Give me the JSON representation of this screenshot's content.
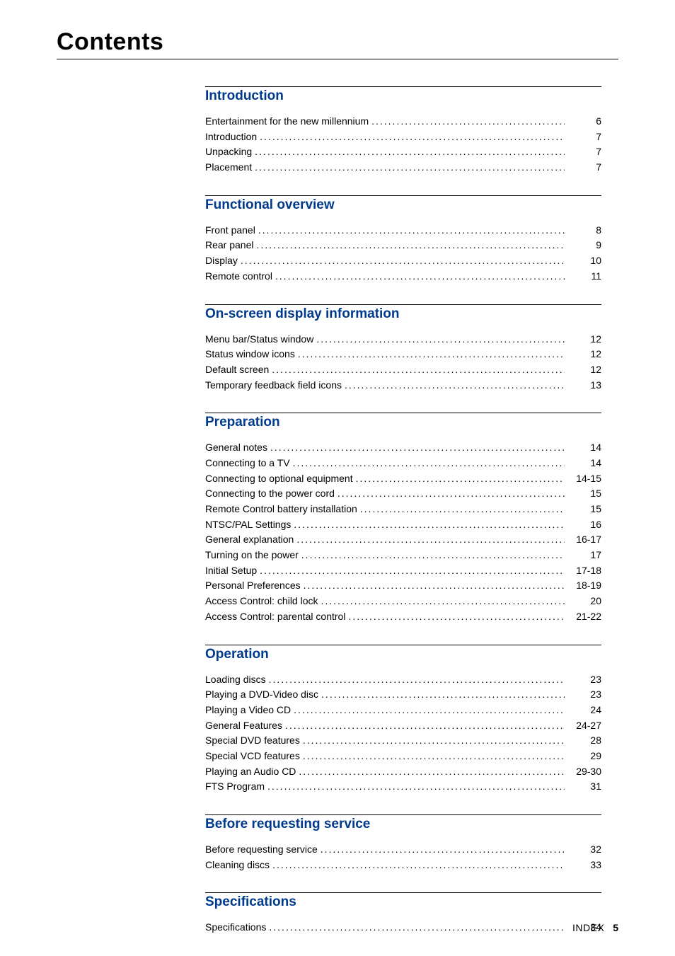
{
  "title": "Contents",
  "heading_color": "#003a8c",
  "text_color": "#000000",
  "background_color": "#ffffff",
  "sections": [
    {
      "heading": "Introduction",
      "items": [
        {
          "label": "Entertainment for the new millennium",
          "page": "6"
        },
        {
          "label": "Introduction",
          "page": "7"
        },
        {
          "label": "Unpacking",
          "page": "7"
        },
        {
          "label": "Placement",
          "page": "7"
        }
      ]
    },
    {
      "heading": "Functional overview",
      "items": [
        {
          "label": "Front panel",
          "page": "8"
        },
        {
          "label": "Rear panel",
          "page": "9"
        },
        {
          "label": "Display",
          "page": "10"
        },
        {
          "label": "Remote control",
          "page": "11"
        }
      ]
    },
    {
      "heading": "On-screen display information",
      "items": [
        {
          "label": "Menu bar/Status window",
          "page": "12"
        },
        {
          "label": "Status window icons",
          "page": "12"
        },
        {
          "label": "Default screen",
          "page": "12"
        },
        {
          "label": "Temporary feedback field icons",
          "page": "13"
        }
      ]
    },
    {
      "heading": "Preparation",
      "items": [
        {
          "label": "General notes",
          "page": "14"
        },
        {
          "label": "Connecting to a TV",
          "page": "14"
        },
        {
          "label": "Connecting to optional equipment",
          "page": "14-15"
        },
        {
          "label": "Connecting to the power cord",
          "page": "15"
        },
        {
          "label": "Remote Control battery installation",
          "page": "15"
        },
        {
          "label": "NTSC/PAL Settings",
          "page": "16"
        },
        {
          "label": "General explanation",
          "page": "16-17"
        },
        {
          "label": "Turning on the power",
          "page": "17"
        },
        {
          "label": "Initial Setup",
          "page": "17-18"
        },
        {
          "label": "Personal Preferences",
          "page": "18-19"
        },
        {
          "label": "Access Control: child lock",
          "page": "20"
        },
        {
          "label": "Access Control: parental control",
          "page": "21-22"
        }
      ]
    },
    {
      "heading": "Operation",
      "items": [
        {
          "label": "Loading discs",
          "page": "23"
        },
        {
          "label": "Playing a DVD-Video disc",
          "page": "23"
        },
        {
          "label": "Playing a Video CD",
          "page": "24"
        },
        {
          "label": "General Features",
          "page": "24-27"
        },
        {
          "label": "Special DVD features",
          "page": "28"
        },
        {
          "label": "Special VCD features",
          "page": "29"
        },
        {
          "label": "Playing an Audio CD",
          "page": "29-30"
        },
        {
          "label": "FTS Program",
          "page": "31"
        }
      ]
    },
    {
      "heading": "Before requesting service",
      "items": [
        {
          "label": "Before requesting service",
          "page": "32"
        },
        {
          "label": "Cleaning discs",
          "page": "33"
        }
      ]
    },
    {
      "heading": "Specifications",
      "items": [
        {
          "label": "Specifications",
          "page": "34"
        }
      ]
    }
  ],
  "footer": {
    "label": "INDEX",
    "page": "5"
  }
}
